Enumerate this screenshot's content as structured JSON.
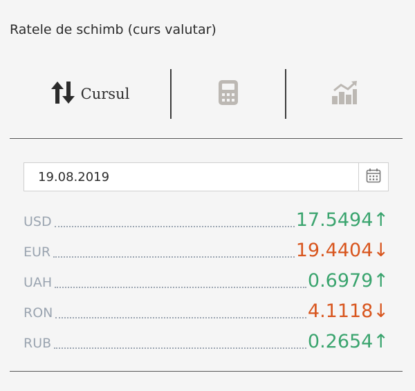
{
  "widget": {
    "title": "Ratele de schimb (curs valutar)"
  },
  "tabs": [
    {
      "label": "Cursul",
      "icon": "up-down-arrows-icon",
      "active": true
    },
    {
      "label": "",
      "icon": "calculator-icon",
      "active": false
    },
    {
      "label": "",
      "icon": "bar-chart-icon",
      "active": false
    }
  ],
  "date": {
    "value": "19.08.2019",
    "icon": "calendar-icon"
  },
  "rates": [
    {
      "code": "USD",
      "value": "17.5494",
      "arrow": "↑",
      "trend": "up"
    },
    {
      "code": "EUR",
      "value": "19.4404",
      "arrow": "↓",
      "trend": "down"
    },
    {
      "code": "UAH",
      "value": "0.6979",
      "arrow": "↑",
      "trend": "up"
    },
    {
      "code": "RON",
      "value": "4.1118",
      "arrow": "↓",
      "trend": "down"
    },
    {
      "code": "RUB",
      "value": "0.2654",
      "arrow": "↑",
      "trend": "up"
    }
  ],
  "colors": {
    "up": "#3aa46e",
    "down": "#d8551d",
    "code": "#9aa4b0",
    "icon_muted": "#bcb8b3"
  }
}
